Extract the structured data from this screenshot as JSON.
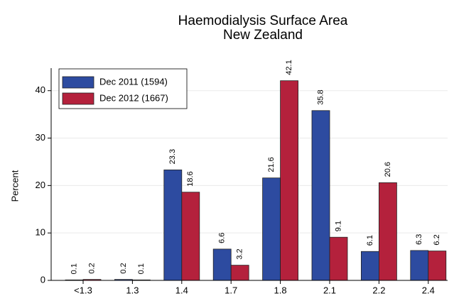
{
  "chart_data": {
    "type": "bar",
    "title": "Haemodialysis Surface Area",
    "subtitle": "New Zealand",
    "y_label": "Percent",
    "categories": [
      "<1.3",
      "1.3",
      "1.4",
      "1.7",
      "1.8",
      "2.1",
      "2.2",
      "2.4"
    ],
    "series": [
      {
        "name": "Dec 2011 (1594)",
        "color": "#2d4ba0",
        "values": [
          0.1,
          0.2,
          23.3,
          6.6,
          21.6,
          35.8,
          6.1,
          6.3
        ]
      },
      {
        "name": "Dec 2012 (1667)",
        "color": "#b4213c",
        "values": [
          0.2,
          0.1,
          18.6,
          3.2,
          42.1,
          9.1,
          20.6,
          6.2
        ]
      }
    ],
    "ylim": [
      0,
      44
    ],
    "yticks": [
      0,
      10,
      20,
      30,
      40
    ],
    "grid": true,
    "legend": "top-left"
  }
}
